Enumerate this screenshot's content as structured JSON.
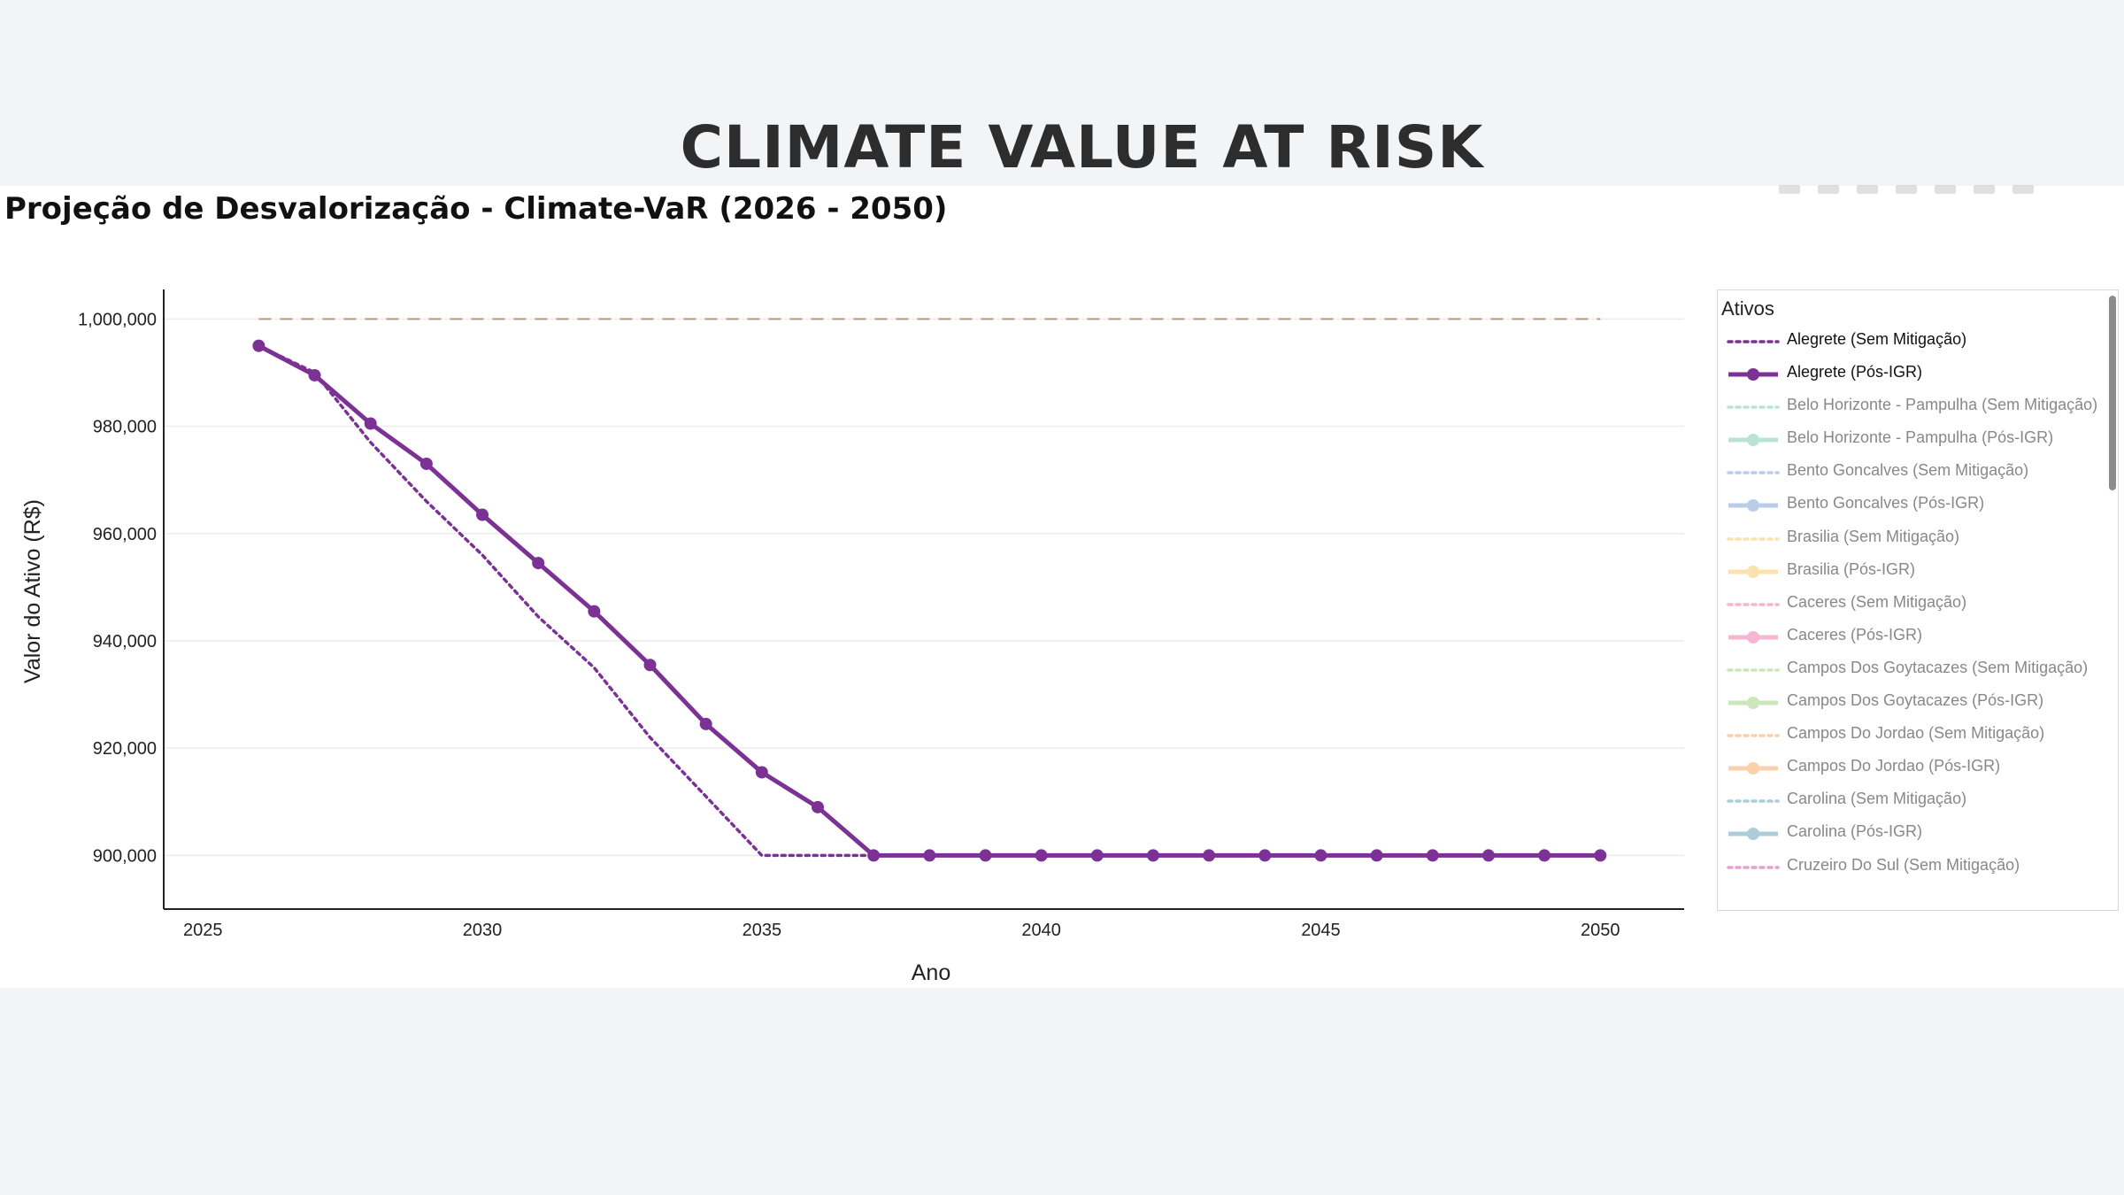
{
  "page": {
    "title": "CLIMATE VALUE AT RISK"
  },
  "chart_data": {
    "type": "line",
    "title": "Projeção de Desvalorização - Climate-VaR (2026 - 2050)",
    "xlabel": "Ano",
    "ylabel": "Valor do Ativo (R$)",
    "xlim": [
      2024.3,
      2051.5
    ],
    "ylim": [
      890000,
      1005500
    ],
    "x_ticks": [
      2025,
      2030,
      2035,
      2040,
      2045,
      2050
    ],
    "x_tick_labels": [
      "2025",
      "2030",
      "2035",
      "2040",
      "2045",
      "2050"
    ],
    "y_ticks": [
      900000,
      920000,
      940000,
      960000,
      980000,
      1000000
    ],
    "y_tick_labels": [
      "900,000",
      "920,000",
      "940,000",
      "960,000",
      "980,000",
      "1,000,000"
    ],
    "grid": true,
    "reference_line": {
      "y": 1000000,
      "x": [
        2026,
        2050
      ],
      "color": "#b09a80",
      "style": "dashed"
    },
    "x": [
      2026,
      2027,
      2028,
      2029,
      2030,
      2031,
      2032,
      2033,
      2034,
      2035,
      2036,
      2037,
      2038,
      2039,
      2040,
      2041,
      2042,
      2043,
      2044,
      2045,
      2046,
      2047,
      2048,
      2049,
      2050
    ],
    "series": [
      {
        "name": "Alegrete (Sem Mitigação)",
        "color": "#7b3294",
        "style": "dotted",
        "values": [
          995000,
          990000,
          977000,
          966000,
          956000,
          944500,
          935000,
          922000,
          911000,
          900000,
          900000,
          900000,
          900000,
          900000,
          900000,
          900000,
          900000,
          900000,
          900000,
          900000,
          900000,
          900000,
          900000,
          900000,
          900000
        ]
      },
      {
        "name": "Alegrete (Pós-IGR)",
        "color": "#7b3294",
        "style": "solid-markers",
        "values": [
          995000,
          989500,
          980500,
          973000,
          963500,
          954500,
          945500,
          935500,
          924500,
          915500,
          909000,
          900000,
          900000,
          900000,
          900000,
          900000,
          900000,
          900000,
          900000,
          900000,
          900000,
          900000,
          900000,
          900000,
          900000
        ]
      }
    ],
    "legend": {
      "title": "Ativos",
      "placement": "right",
      "items": [
        {
          "label": "Alegrete (Sem Mitigação)",
          "color": "#7b3294",
          "style": "dotted",
          "active": true
        },
        {
          "label": "Alegrete (Pós-IGR)",
          "color": "#7b3294",
          "style": "solid-markers",
          "active": true
        },
        {
          "label": "Belo Horizonte - Pampulha (Sem Mitigação)",
          "color": "#66c2a5",
          "style": "dotted",
          "active": false
        },
        {
          "label": "Belo Horizonte - Pampulha (Pós-IGR)",
          "color": "#66c2a5",
          "style": "solid-markers",
          "active": false
        },
        {
          "label": "Bento Goncalves (Sem Mitigação)",
          "color": "#6a8fd0",
          "style": "dotted",
          "active": false
        },
        {
          "label": "Bento Goncalves (Pós-IGR)",
          "color": "#6a8fd0",
          "style": "solid-markers",
          "active": false
        },
        {
          "label": "Brasilia (Sem Mitigação)",
          "color": "#f2c14e",
          "style": "dotted",
          "active": false
        },
        {
          "label": "Brasilia (Pós-IGR)",
          "color": "#f2c14e",
          "style": "solid-markers",
          "active": false
        },
        {
          "label": "Caceres (Sem Mitigação)",
          "color": "#e7609a",
          "style": "dotted",
          "active": false
        },
        {
          "label": "Caceres (Pós-IGR)",
          "color": "#e7609a",
          "style": "solid-markers",
          "active": false
        },
        {
          "label": "Campos Dos Goytacazes (Sem Mitigação)",
          "color": "#8fc96a",
          "style": "dotted",
          "active": false
        },
        {
          "label": "Campos Dos Goytacazes (Pós-IGR)",
          "color": "#8fc96a",
          "style": "solid-markers",
          "active": false
        },
        {
          "label": "Campos Do Jordao (Sem Mitigação)",
          "color": "#f59a45",
          "style": "dotted",
          "active": false
        },
        {
          "label": "Campos Do Jordao (Pós-IGR)",
          "color": "#f59a45",
          "style": "solid-markers",
          "active": false
        },
        {
          "label": "Carolina (Sem Mitigação)",
          "color": "#4a90a8",
          "style": "dotted",
          "active": false
        },
        {
          "label": "Carolina (Pós-IGR)",
          "color": "#4a90a8",
          "style": "solid-markers",
          "active": false
        },
        {
          "label": "Cruzeiro Do Sul (Sem Mitigação)",
          "color": "#c2379a",
          "style": "dotted",
          "active": false
        }
      ]
    }
  }
}
